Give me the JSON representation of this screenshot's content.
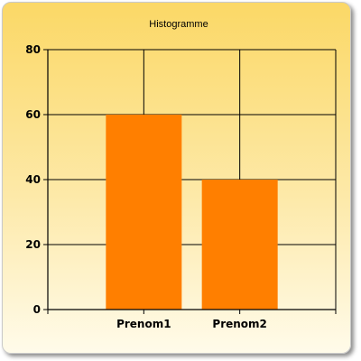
{
  "chart_data": {
    "type": "bar",
    "title": "Histogramme",
    "categories": [
      "Prenom1",
      "Prenom2"
    ],
    "values": [
      60,
      40
    ],
    "xlabel": "",
    "ylabel": "",
    "ylim": [
      0,
      80
    ],
    "yticks": [
      "0",
      "20",
      "40",
      "60",
      "80"
    ],
    "grid": true,
    "legend": "none",
    "bar_color": "#ff7f00"
  }
}
